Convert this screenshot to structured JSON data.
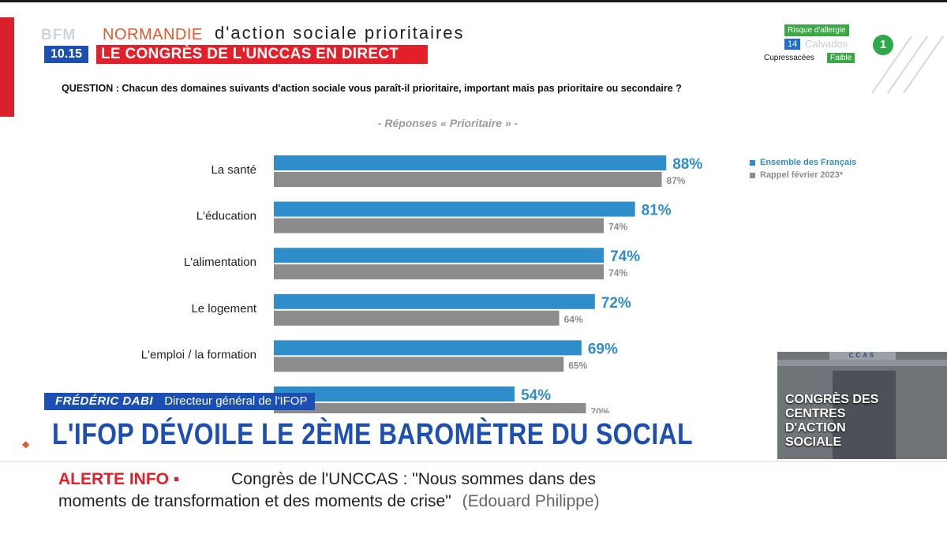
{
  "broadcast": {
    "channel_logo_text": "BFM",
    "time": "10.15",
    "region": "NORMANDIE",
    "header_banner": "LE CONGRÈS DE L'UNCCAS EN DIRECT",
    "allergy": {
      "title": "Risque d'allergie",
      "department_code": "14",
      "department": "Calvados",
      "plant": "Cupressacées",
      "level": "Faible"
    },
    "channel_number": "1"
  },
  "slide": {
    "title": "d'action sociale prioritaires",
    "question": "QUESTION : Chacun des domaines suivants d'action sociale vous paraît-il prioritaire, important mais pas prioritaire ou secondaire ?",
    "subtitle": "- Réponses « Prioritaire » -"
  },
  "chart_data": {
    "type": "bar",
    "orientation": "horizontal",
    "title": "d'action sociale prioritaires",
    "subtitle": "- Réponses « Prioritaire » -",
    "categories": [
      "La santé",
      "L'éducation",
      "L'alimentation",
      "Le logement",
      "L'emploi / la formation",
      ""
    ],
    "series": [
      {
        "name": "Ensemble des Français",
        "values": [
          88,
          81,
          74,
          72,
          69,
          54
        ],
        "color": "#2f8dcb"
      },
      {
        "name": "Rappel février 2023*",
        "values": [
          87,
          74,
          74,
          64,
          65,
          70
        ],
        "color": "#8c8c8c"
      }
    ],
    "data_labels": [
      [
        "88%",
        "81%",
        "74%",
        "72%",
        "69%",
        "54%"
      ],
      [
        "87%",
        "74%",
        "74%",
        "64%",
        "65%",
        "70%"
      ]
    ],
    "xlim": [
      0,
      100
    ],
    "grid": false,
    "legend_position": "top-right"
  },
  "lower_third": {
    "speaker_name": "FRÉDÉRIC DABI",
    "speaker_role": "Directeur général de l'IFOP",
    "headline": "L'IFOP DÉVOILE LE 2ÈME BAROMÈTRE DU SOCIAL"
  },
  "ticker": {
    "label": "ALERTE INFO ▪",
    "line1": "Congrès de l'UNCCAS : \"Nous sommes dans des",
    "line2": "moments de transformation et des moments de crise\"",
    "source": "(Edouard Philippe)"
  },
  "inset": {
    "sign": "CCAS",
    "text": "CONGRÈS DES CENTRES D'ACTION SOCIALE"
  }
}
